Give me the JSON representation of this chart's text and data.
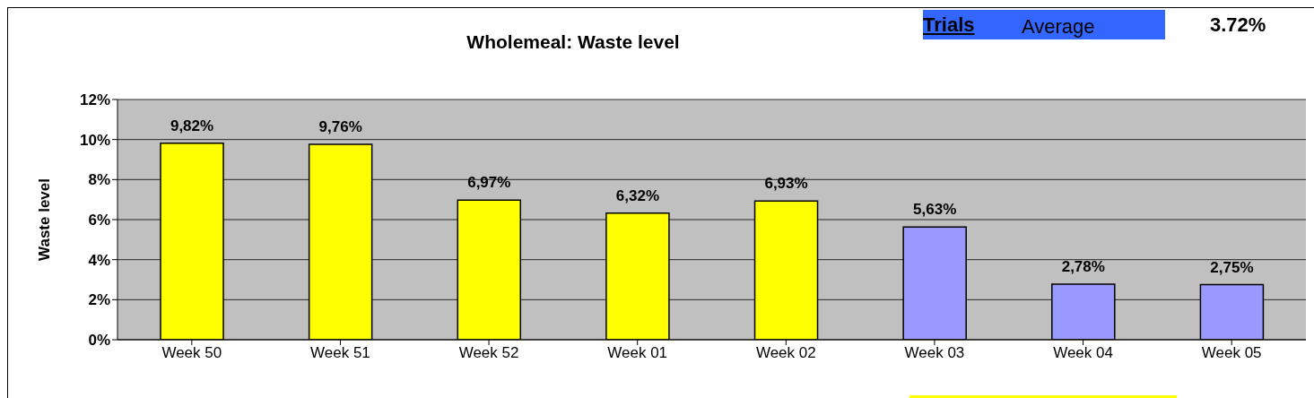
{
  "chart_data": {
    "type": "bar",
    "title": "Wholemeal: Waste level",
    "ylabel": "Waste level",
    "categories": [
      "Week 50",
      "Week 51",
      "Week 52",
      "Week 01",
      "Week 02",
      "Week 03",
      "Week 04",
      "Week 05"
    ],
    "values": [
      9.82,
      9.76,
      6.97,
      6.32,
      6.93,
      5.63,
      2.78,
      2.75
    ],
    "colors": [
      "#ffff00",
      "#ffff00",
      "#ffff00",
      "#ffff00",
      "#ffff00",
      "#9999ff",
      "#9999ff",
      "#9999ff"
    ],
    "value_labels": [
      "9,82%",
      "9,76%",
      "6,97%",
      "6,32%",
      "6,93%",
      "5,63%",
      "2,78%",
      "2,75%"
    ],
    "ylim": [
      0,
      12
    ],
    "yticks": [
      {
        "value": 0,
        "label": "0%"
      },
      {
        "value": 2,
        "label": "2%"
      },
      {
        "value": 4,
        "label": "4%"
      },
      {
        "value": 6,
        "label": "6%"
      },
      {
        "value": 8,
        "label": "8%"
      },
      {
        "value": 10,
        "label": "10%"
      },
      {
        "value": 12,
        "label": "12%"
      }
    ],
    "grid": "y",
    "legend": false,
    "annotations": [
      "Trials",
      "Average",
      "3.72%"
    ]
  }
}
